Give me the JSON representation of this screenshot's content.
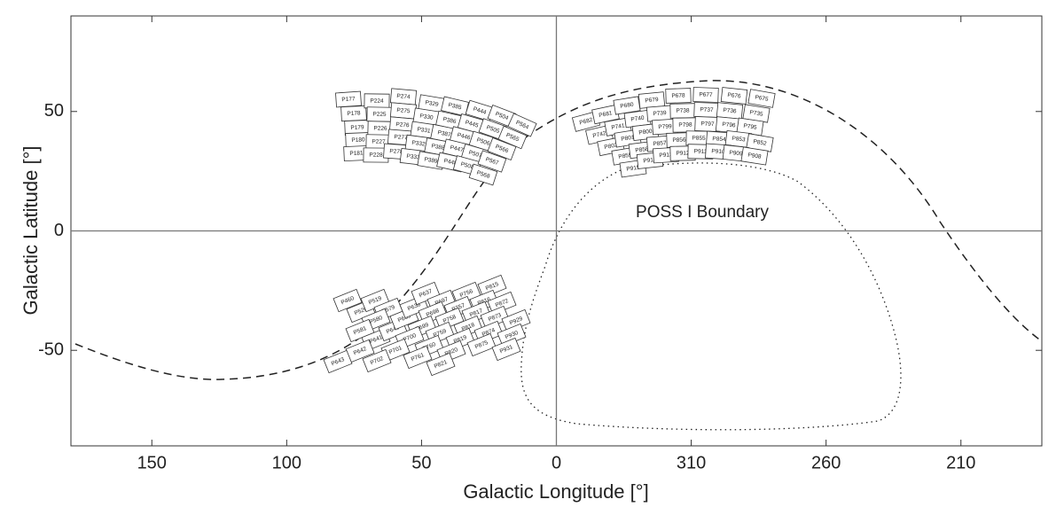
{
  "chart_data": {
    "type": "map",
    "xlabel": "Galactic Longitude [°]",
    "ylabel": "Galactic Latitude [°]",
    "xlim": [
      180,
      -180
    ],
    "ylim": [
      -90,
      90
    ],
    "xticks": [
      150,
      100,
      50,
      0,
      {
        "value": -50,
        "label": "310"
      },
      {
        "value": -100,
        "label": "260"
      },
      {
        "value": -150,
        "label": "210"
      }
    ],
    "yticks": [
      -50,
      0,
      50
    ],
    "annotations": [
      "POSS I Boundary"
    ],
    "fields": [
      "P177",
      "P178",
      "P179",
      "P180",
      "P181",
      "P224",
      "P225",
      "P226",
      "P227",
      "P228",
      "P274",
      "P275",
      "P276",
      "P277",
      "P278",
      "P329",
      "P330",
      "P331",
      "P332",
      "P333",
      "P385",
      "P386",
      "P387",
      "P388",
      "P389",
      "P444",
      "P445",
      "P446",
      "P447",
      "P448",
      "P504",
      "P505",
      "P506",
      "P507",
      "P508",
      "P564",
      "P565",
      "P566",
      "P567",
      "P568",
      "P682",
      "P681",
      "P680",
      "P679",
      "P678",
      "P677",
      "P676",
      "P675",
      "P742",
      "P741",
      "P740",
      "P739",
      "P738",
      "P737",
      "P736",
      "P735",
      "P802",
      "P801",
      "P800",
      "P799",
      "P798",
      "P797",
      "P796",
      "P795",
      "P859",
      "P858",
      "P857",
      "P856",
      "P855",
      "P854",
      "P853",
      "P852",
      "P915",
      "P914",
      "P913",
      "P912",
      "P911",
      "P910",
      "P909",
      "P908",
      "P460",
      "P520",
      "P519",
      "P579",
      "P580",
      "P581",
      "P641",
      "P642",
      "P643",
      "P640",
      "P639",
      "P638",
      "P637",
      "P697",
      "P698",
      "P699",
      "P700",
      "P701",
      "P702",
      "P756",
      "P757",
      "P758",
      "P759",
      "P760",
      "P761",
      "P815",
      "P816",
      "P817",
      "P818",
      "P819",
      "P820",
      "P821",
      "P872",
      "P873",
      "P874",
      "P875",
      "P929",
      "P930",
      "P931"
    ]
  }
}
